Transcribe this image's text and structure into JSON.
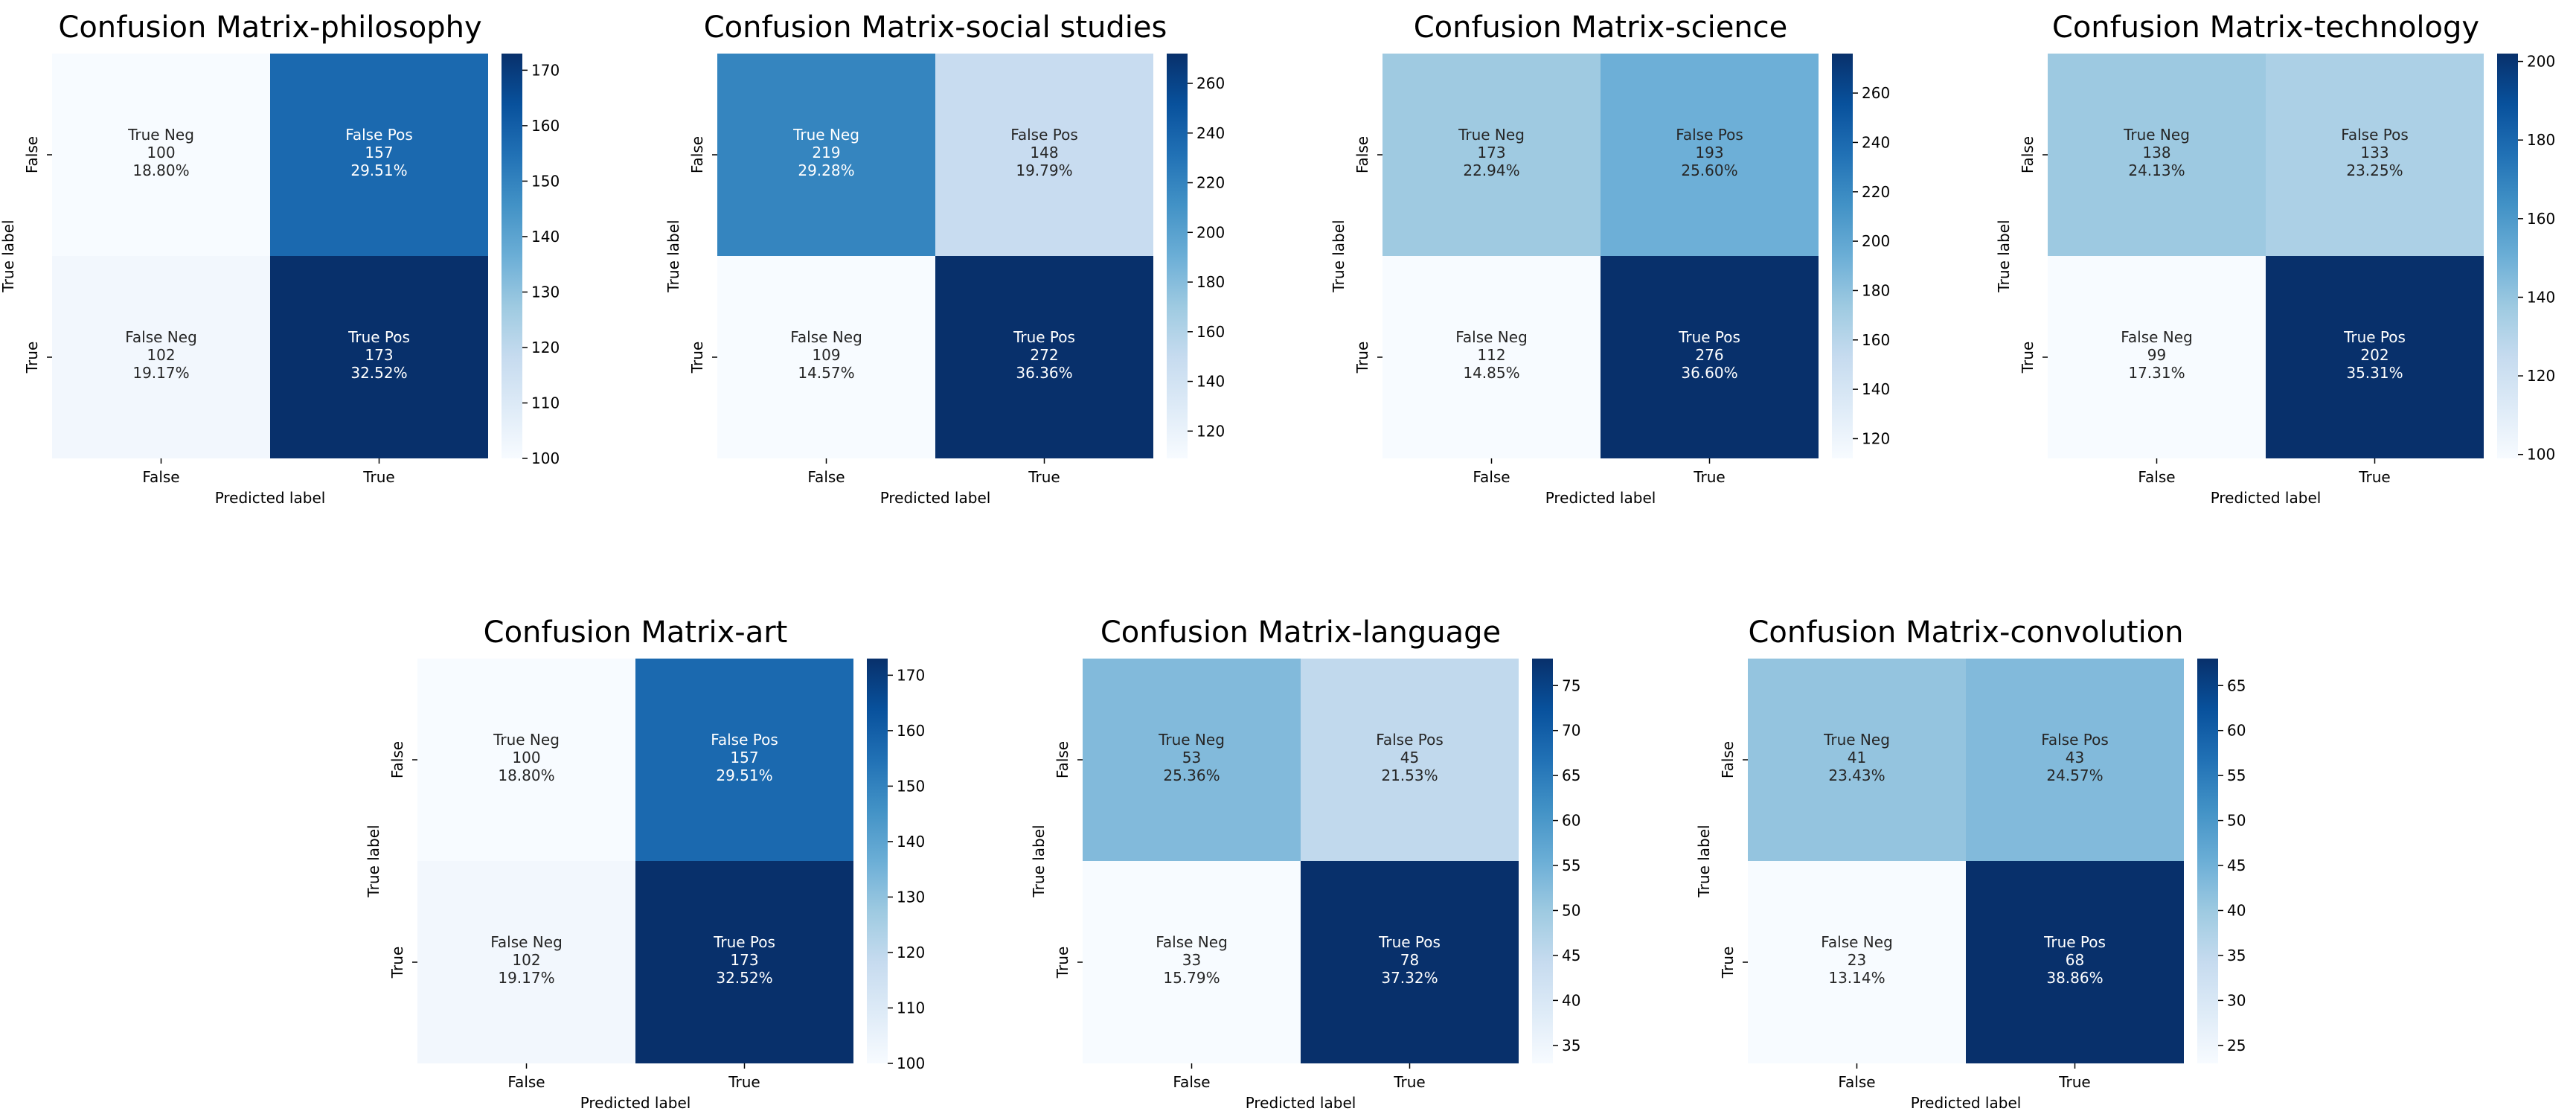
{
  "figure": {
    "background": "#ffffff"
  },
  "chart_data": [
    {
      "type": "heatmap",
      "title": "Confusion Matrix-philosophy",
      "xlabel": "Predicted label",
      "ylabel": "True label",
      "xticklabels": [
        "False",
        "True"
      ],
      "yticklabels": [
        "False",
        "True"
      ],
      "colormap": "Blues",
      "cells": [
        [
          {
            "label": "True Neg",
            "count": "100",
            "pct": "18.80%",
            "value": 100
          },
          {
            "label": "False Pos",
            "count": "157",
            "pct": "29.51%",
            "value": 157
          }
        ],
        [
          {
            "label": "False Neg",
            "count": "102",
            "pct": "19.17%",
            "value": 102
          },
          {
            "label": "True Pos",
            "count": "173",
            "pct": "32.52%",
            "value": 173
          }
        ]
      ],
      "colorbar": {
        "min": 100,
        "max": 173,
        "ticks": [
          100,
          110,
          120,
          130,
          140,
          150,
          160,
          170
        ]
      }
    },
    {
      "type": "heatmap",
      "title": "Confusion Matrix-social studies",
      "xlabel": "Predicted label",
      "ylabel": "True label",
      "xticklabels": [
        "False",
        "True"
      ],
      "yticklabels": [
        "False",
        "True"
      ],
      "colormap": "Blues",
      "cells": [
        [
          {
            "label": "True Neg",
            "count": "219",
            "pct": "29.28%",
            "value": 219
          },
          {
            "label": "False Pos",
            "count": "148",
            "pct": "19.79%",
            "value": 148
          }
        ],
        [
          {
            "label": "False Neg",
            "count": "109",
            "pct": "14.57%",
            "value": 109
          },
          {
            "label": "True Pos",
            "count": "272",
            "pct": "36.36%",
            "value": 272
          }
        ]
      ],
      "colorbar": {
        "min": 109,
        "max": 272,
        "ticks": [
          120,
          140,
          160,
          180,
          200,
          220,
          240,
          260
        ]
      }
    },
    {
      "type": "heatmap",
      "title": "Confusion Matrix-science",
      "xlabel": "Predicted label",
      "ylabel": "True label",
      "xticklabels": [
        "False",
        "True"
      ],
      "yticklabels": [
        "False",
        "True"
      ],
      "colormap": "Blues",
      "cells": [
        [
          {
            "label": "True Neg",
            "count": "173",
            "pct": "22.94%",
            "value": 173
          },
          {
            "label": "False Pos",
            "count": "193",
            "pct": "25.60%",
            "value": 193
          }
        ],
        [
          {
            "label": "False Neg",
            "count": "112",
            "pct": "14.85%",
            "value": 112
          },
          {
            "label": "True Pos",
            "count": "276",
            "pct": "36.60%",
            "value": 276
          }
        ]
      ],
      "colorbar": {
        "min": 112,
        "max": 276,
        "ticks": [
          120,
          140,
          160,
          180,
          200,
          220,
          240,
          260
        ]
      }
    },
    {
      "type": "heatmap",
      "title": "Confusion Matrix-technology",
      "xlabel": "Predicted label",
      "ylabel": "True label",
      "xticklabels": [
        "False",
        "True"
      ],
      "yticklabels": [
        "False",
        "True"
      ],
      "colormap": "Blues",
      "cells": [
        [
          {
            "label": "True Neg",
            "count": "138",
            "pct": "24.13%",
            "value": 138
          },
          {
            "label": "False Pos",
            "count": "133",
            "pct": "23.25%",
            "value": 133
          }
        ],
        [
          {
            "label": "False Neg",
            "count": "99",
            "pct": "17.31%",
            "value": 99
          },
          {
            "label": "True Pos",
            "count": "202",
            "pct": "35.31%",
            "value": 202
          }
        ]
      ],
      "colorbar": {
        "min": 99,
        "max": 202,
        "ticks": [
          100,
          120,
          140,
          160,
          180,
          200
        ]
      }
    },
    {
      "type": "heatmap",
      "title": "Confusion Matrix-art",
      "xlabel": "Predicted label",
      "ylabel": "True label",
      "xticklabels": [
        "False",
        "True"
      ],
      "yticklabels": [
        "False",
        "True"
      ],
      "colormap": "Blues",
      "cells": [
        [
          {
            "label": "True Neg",
            "count": "100",
            "pct": "18.80%",
            "value": 100
          },
          {
            "label": "False Pos",
            "count": "157",
            "pct": "29.51%",
            "value": 157
          }
        ],
        [
          {
            "label": "False Neg",
            "count": "102",
            "pct": "19.17%",
            "value": 102
          },
          {
            "label": "True Pos",
            "count": "173",
            "pct": "32.52%",
            "value": 173
          }
        ]
      ],
      "colorbar": {
        "min": 100,
        "max": 173,
        "ticks": [
          100,
          110,
          120,
          130,
          140,
          150,
          160,
          170
        ]
      }
    },
    {
      "type": "heatmap",
      "title": "Confusion Matrix-language",
      "xlabel": "Predicted label",
      "ylabel": "True label",
      "xticklabels": [
        "False",
        "True"
      ],
      "yticklabels": [
        "False",
        "True"
      ],
      "colormap": "Blues",
      "cells": [
        [
          {
            "label": "True Neg",
            "count": "53",
            "pct": "25.36%",
            "value": 53
          },
          {
            "label": "False Pos",
            "count": "45",
            "pct": "21.53%",
            "value": 45
          }
        ],
        [
          {
            "label": "False Neg",
            "count": "33",
            "pct": "15.79%",
            "value": 33
          },
          {
            "label": "True Pos",
            "count": "78",
            "pct": "37.32%",
            "value": 78
          }
        ]
      ],
      "colorbar": {
        "min": 33,
        "max": 78,
        "ticks": [
          35,
          40,
          45,
          50,
          55,
          60,
          65,
          70,
          75
        ]
      }
    },
    {
      "type": "heatmap",
      "title": "Confusion Matrix-convolution",
      "xlabel": "Predicted label",
      "ylabel": "True label",
      "xticklabels": [
        "False",
        "True"
      ],
      "yticklabels": [
        "False",
        "True"
      ],
      "colormap": "Blues",
      "cells": [
        [
          {
            "label": "True Neg",
            "count": "41",
            "pct": "23.43%",
            "value": 41
          },
          {
            "label": "False Pos",
            "count": "43",
            "pct": "24.57%",
            "value": 43
          }
        ],
        [
          {
            "label": "False Neg",
            "count": "23",
            "pct": "13.14%",
            "value": 23
          },
          {
            "label": "True Pos",
            "count": "68",
            "pct": "38.86%",
            "value": 68
          }
        ]
      ],
      "colorbar": {
        "min": 23,
        "max": 68,
        "ticks": [
          25,
          30,
          35,
          40,
          45,
          50,
          55,
          60,
          65
        ]
      }
    }
  ]
}
